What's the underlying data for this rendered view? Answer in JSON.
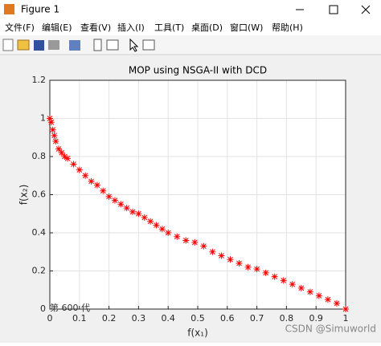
{
  "window": {
    "title": "Figure 1"
  },
  "menu": [
    "文件(F)",
    "编辑(E)",
    "查看(V)",
    "插入(I)",
    "工具(T)",
    "桌面(D)",
    "窗口(W)",
    "帮助(H)"
  ],
  "chart_data": {
    "type": "scatter",
    "title": "MOP using NSGA-II with DCD",
    "xlabel": "f(x₁)",
    "ylabel": "f(x₂)",
    "annotation": "第 600 代",
    "watermark": "CSDN @Simuworld",
    "series": [
      {
        "color": "#ff0000",
        "x": [
          0,
          0.005,
          0.01,
          0.015,
          0.02,
          0.03,
          0.04,
          0.05,
          0.06,
          0.08,
          0.1,
          0.12,
          0.14,
          0.16,
          0.18,
          0.2,
          0.22,
          0.24,
          0.26,
          0.28,
          0.3,
          0.32,
          0.34,
          0.36,
          0.38,
          0.4,
          0.43,
          0.46,
          0.49,
          0.52,
          0.55,
          0.58,
          0.61,
          0.64,
          0.67,
          0.7,
          0.73,
          0.76,
          0.79,
          0.82,
          0.85,
          0.88,
          0.91,
          0.94,
          0.97,
          1.0
        ],
        "values": [
          1.0,
          0.98,
          0.94,
          0.91,
          0.88,
          0.84,
          0.82,
          0.8,
          0.79,
          0.76,
          0.73,
          0.7,
          0.67,
          0.65,
          0.62,
          0.59,
          0.57,
          0.55,
          0.53,
          0.51,
          0.5,
          0.48,
          0.46,
          0.44,
          0.42,
          0.4,
          0.38,
          0.36,
          0.35,
          0.33,
          0.3,
          0.28,
          0.26,
          0.24,
          0.22,
          0.21,
          0.19,
          0.17,
          0.15,
          0.13,
          0.11,
          0.09,
          0.07,
          0.05,
          0.03,
          0.0
        ]
      }
    ],
    "xlim": [
      0,
      1
    ],
    "ylim": [
      0,
      1.2
    ],
    "xticks": [
      0,
      0.1,
      0.2,
      0.3,
      0.4,
      0.5,
      0.6,
      0.7,
      0.8,
      0.9,
      1
    ],
    "yticks": [
      0,
      0.2,
      0.4,
      0.6,
      0.8,
      1,
      1.2
    ],
    "grid": true
  }
}
